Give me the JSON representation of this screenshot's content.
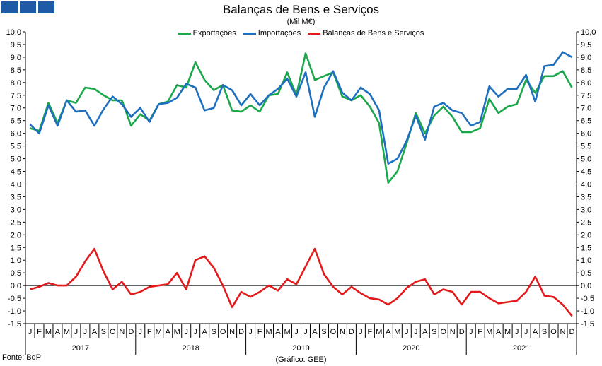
{
  "header": {
    "title": "Balanças de Bens e Serviços",
    "subtitle": "(Mil M€)"
  },
  "footer": {
    "source": "Fonte: BdP",
    "note": "(Gráfico: GEE)"
  },
  "colors": {
    "exports": "#1aa84b",
    "imports": "#1f6fbf",
    "balance": "#e31a1c",
    "logo": "#1f5aa6"
  },
  "chart_data": {
    "type": "line",
    "title": "Balanças de Bens e Serviços",
    "subtitle": "(Mil M€)",
    "ylim": [
      -1.5,
      10.0
    ],
    "y_ticks": [
      "10,0",
      "9,5",
      "9,0",
      "8,5",
      "8,0",
      "7,5",
      "7,0",
      "6,5",
      "6,0",
      "5,5",
      "5,0",
      "4,5",
      "4,0",
      "3,5",
      "3,0",
      "2,5",
      "2,0",
      "1,5",
      "1,0",
      "0,5",
      "0,0",
      "-0,5",
      "-1,0",
      "-1,5"
    ],
    "month_labels": [
      "J",
      "F",
      "M",
      "A",
      "M",
      "J",
      "J",
      "A",
      "S",
      "O",
      "N",
      "D"
    ],
    "years": [
      "2017",
      "2018",
      "2019",
      "2020",
      "2021"
    ],
    "legend_position": "top-center",
    "grid": false,
    "series": [
      {
        "name": "Exportações",
        "values": [
          6.2,
          6.1,
          7.2,
          6.4,
          7.3,
          7.2,
          7.8,
          7.75,
          7.5,
          7.3,
          7.3,
          6.3,
          6.75,
          6.5,
          7.15,
          7.25,
          7.9,
          7.8,
          8.8,
          8.1,
          7.7,
          7.9,
          6.9,
          6.85,
          7.1,
          6.85,
          7.5,
          7.55,
          8.4,
          7.5,
          9.15,
          8.1,
          8.25,
          8.4,
          7.45,
          7.3,
          7.5,
          7.05,
          6.4,
          4.05,
          4.5,
          5.6,
          6.8,
          6.0,
          6.7,
          7.05,
          6.65,
          6.05,
          6.05,
          6.2,
          7.35,
          6.8,
          7.05,
          7.15,
          8.1,
          7.6,
          8.25,
          8.25,
          8.45,
          7.8
        ]
      },
      {
        "name": "Importações",
        "values": [
          6.35,
          6.0,
          7.1,
          6.3,
          7.3,
          6.85,
          6.9,
          6.3,
          6.95,
          7.45,
          7.15,
          6.65,
          7.0,
          6.45,
          7.15,
          7.2,
          7.4,
          7.95,
          7.8,
          6.9,
          7.0,
          7.9,
          7.7,
          7.1,
          7.55,
          7.1,
          7.5,
          7.75,
          8.15,
          7.45,
          8.4,
          6.65,
          7.8,
          8.45,
          7.6,
          7.3,
          7.8,
          7.55,
          6.9,
          4.8,
          5.0,
          5.7,
          6.7,
          5.75,
          7.05,
          7.2,
          6.9,
          6.8,
          6.3,
          6.45,
          7.85,
          7.45,
          7.75,
          7.75,
          8.3,
          7.25,
          8.65,
          8.7,
          9.2,
          9.0
        ]
      },
      {
        "name": "Balanças de Bens e Serviços",
        "values": [
          -0.15,
          -0.05,
          0.1,
          0.0,
          0.0,
          0.35,
          0.95,
          1.45,
          0.55,
          -0.15,
          0.15,
          -0.35,
          -0.25,
          -0.05,
          0.0,
          0.05,
          0.5,
          -0.15,
          1.0,
          1.15,
          0.7,
          0.0,
          -0.85,
          -0.25,
          -0.45,
          -0.25,
          0.0,
          -0.2,
          0.25,
          0.05,
          0.75,
          1.45,
          0.45,
          -0.05,
          -0.35,
          -0.05,
          -0.3,
          -0.5,
          -0.55,
          -0.75,
          -0.5,
          -0.1,
          0.15,
          0.25,
          -0.35,
          -0.15,
          -0.25,
          -0.75,
          -0.25,
          -0.25,
          -0.5,
          -0.7,
          -0.65,
          -0.6,
          -0.25,
          0.35,
          -0.4,
          -0.45,
          -0.75,
          -1.2
        ]
      }
    ]
  }
}
